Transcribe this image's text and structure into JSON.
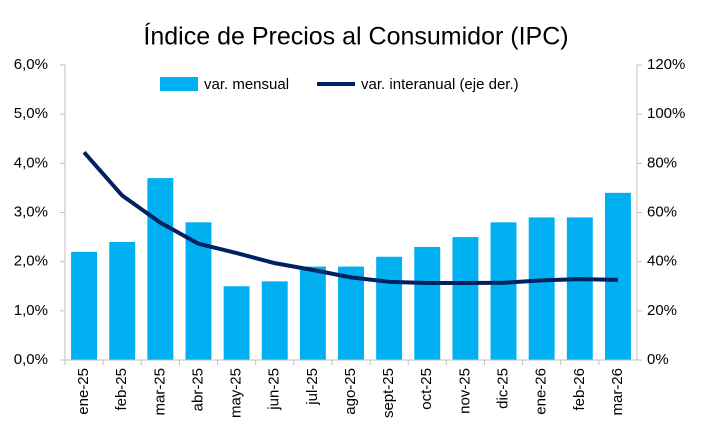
{
  "chart_data": {
    "type": "bar-line",
    "title": "Índice de Precios al Consumidor (IPC)",
    "categories": [
      "ene-25",
      "feb-25",
      "mar-25",
      "abr-25",
      "may-25",
      "jun-25",
      "jul-25",
      "ago-25",
      "sept-25",
      "oct-25",
      "nov-25",
      "dic-25",
      "ene-26",
      "feb-26",
      "mar-26"
    ],
    "series": [
      {
        "name": "var. mensual",
        "color": "#00b0f0",
        "type": "bar",
        "values": [
          2.2,
          2.4,
          3.7,
          2.8,
          1.5,
          1.6,
          1.9,
          1.9,
          2.1,
          2.3,
          2.5,
          2.8,
          2.9,
          2.9,
          3.4
        ]
      },
      {
        "name": "var. interanual (eje der.)",
        "color": "#002060",
        "type": "line",
        "axis": "y2",
        "values": [
          84.5,
          66.9,
          55.9,
          47.3,
          43.5,
          39.4,
          36.6,
          33.6,
          31.8,
          31.3,
          31.3,
          31.4,
          32.4,
          32.9,
          32.6
        ]
      }
    ],
    "ylim": [
      0,
      6
    ],
    "yticks": [
      {
        "value": 0,
        "label": "0,0%"
      },
      {
        "value": 1,
        "label": "1,0%"
      },
      {
        "value": 2,
        "label": "2,0%"
      },
      {
        "value": 3,
        "label": "3,0%"
      },
      {
        "value": 4,
        "label": "4,0%"
      },
      {
        "value": 5,
        "label": "5,0%"
      },
      {
        "value": 6,
        "label": "6,0%"
      }
    ],
    "y2lim": [
      0,
      120
    ],
    "y2ticks": [
      {
        "value": 0,
        "label": "0%"
      },
      {
        "value": 20,
        "label": "20%"
      },
      {
        "value": 40,
        "label": "40%"
      },
      {
        "value": 60,
        "label": "60%"
      },
      {
        "value": 80,
        "label": "80%"
      },
      {
        "value": 100,
        "label": "100%"
      },
      {
        "value": 120,
        "label": "120%"
      }
    ],
    "legend": "top"
  }
}
